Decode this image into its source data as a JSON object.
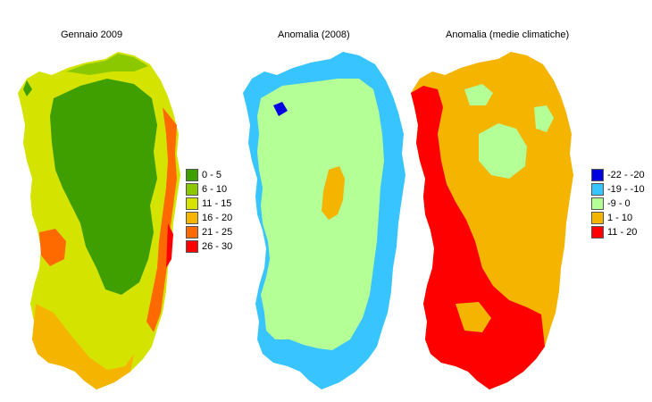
{
  "panels": [
    {
      "title": "Gennaio 2009",
      "legend": [
        {
          "label": "0 - 5",
          "color": "#3f9f00"
        },
        {
          "label": "6 - 10",
          "color": "#8cc800"
        },
        {
          "label": "11 - 15",
          "color": "#d4e400"
        },
        {
          "label": "16 - 20",
          "color": "#f5b400"
        },
        {
          "label": "21 - 25",
          "color": "#ff6a00"
        },
        {
          "label": "26 - 30",
          "color": "#ff0000"
        }
      ]
    },
    {
      "title": "Anomalia (2008)",
      "colors": {
        "sea_margin": "#38c4ff",
        "land": "#b4ff96",
        "patch": "#f5b400",
        "dark": "#0000e0"
      }
    },
    {
      "title": "Anomalia (medie climatiche)",
      "legend": [
        {
          "label": "-22 - -20",
          "color": "#0000e0"
        },
        {
          "label": "-19 - -10",
          "color": "#38c4ff"
        },
        {
          "label": "-9 - 0",
          "color": "#b4ff96"
        },
        {
          "label": "1 - 10",
          "color": "#f5b400"
        },
        {
          "label": "11 - 20",
          "color": "#ff0000"
        }
      ]
    }
  ]
}
